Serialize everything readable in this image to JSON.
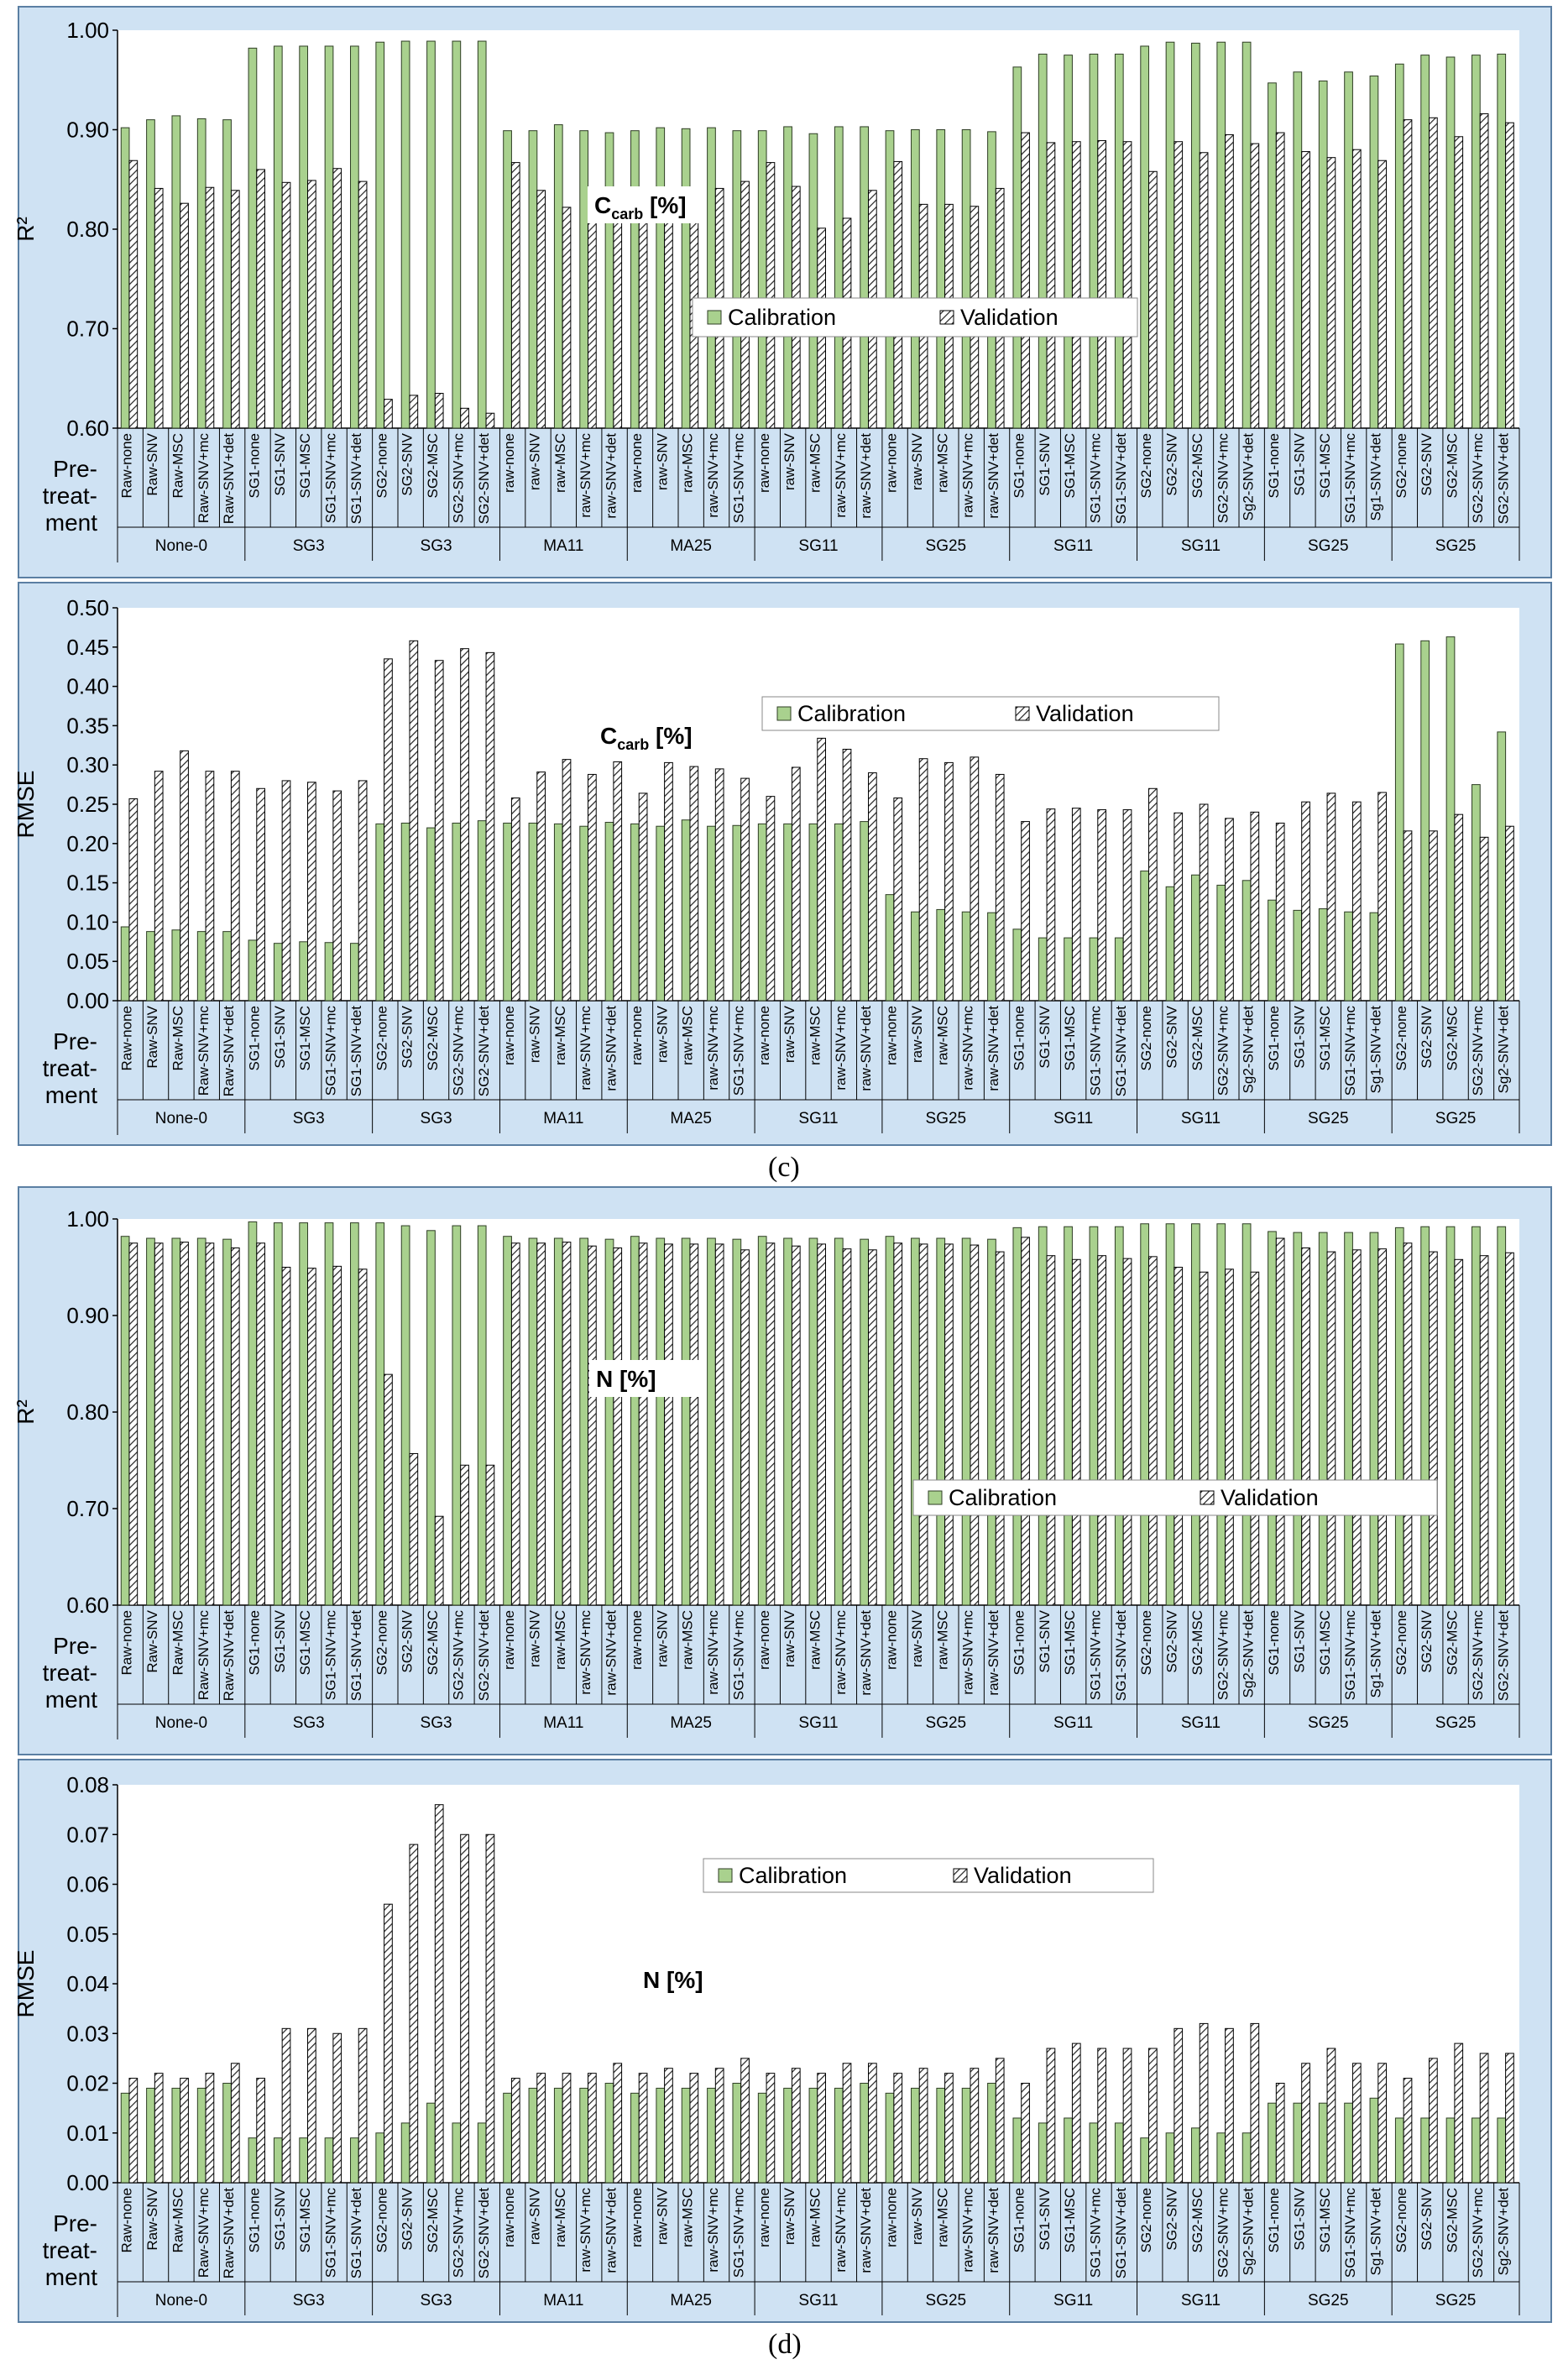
{
  "palette": {
    "calibration": "#a9d18e",
    "calibration_stroke": "#2e3d24",
    "validation": "#ffffff",
    "frame": "#cfe2f3",
    "panel_border": "#5b7fa3"
  },
  "pretreat_label": "Pre-\ntreat-\nment",
  "panel_letters": [
    "(c)",
    "(d)"
  ],
  "legend_labels": [
    "Calibration",
    "Validation"
  ],
  "labels_common": [
    "Raw-none",
    "Raw-SNV",
    "Raw-MSC",
    "Raw-SNV+mc",
    "Raw-SNV+det",
    "SG1-none",
    "SG1-SNV",
    "SG1-MSC",
    "SG1-SNV+mc",
    "SG1-SNV+det",
    "SG2-none",
    "SG2-SNV",
    "SG2-MSC",
    "SG2-SNV+mc",
    "SG2-SNV+det",
    "raw-none",
    "raw-SNV",
    "raw-MSC",
    "raw-SNV+mc",
    "raw-SNV+det",
    "raw-none",
    "raw-SNV",
    "raw-MSC",
    "raw-SNV+mc",
    "SG1-SNV+mc",
    "raw-none",
    "raw-SNV",
    "raw-MSC",
    "raw-SNV+mc",
    "raw-SNV+det",
    "raw-none",
    "raw-SNV",
    "raw-MSC",
    "raw-SNV+mc",
    "raw-SNV+det",
    "SG1-none",
    "SG1-SNV",
    "SG1-MSC",
    "SG1-SNV+mc",
    "SG1-SNV+det",
    "SG2-none",
    "SG2-SNV",
    "SG2-MSC",
    "SG2-SNV+mc",
    "Sg2-SNV+det",
    "SG1-none",
    "SG1-SNV",
    "SG1-MSC",
    "SG1-SNV+mc",
    "Sg1-SNV+det",
    "SG2-none",
    "SG2-SNV",
    "SG2-MSC",
    "SG2-SNV+mc",
    "SG2-SNV+det"
  ],
  "labels_rmse_c": [
    "Raw-none",
    "Raw-SNV",
    "Raw-MSC",
    "Raw-SNV+mc",
    "Raw-SNV+det",
    "SG1-none",
    "SG1-SNV",
    "SG1-MSC",
    "SG1-SNV+mc",
    "SG1-SNV+det",
    "SG2-none",
    "SG2-SNV",
    "SG2-MSC",
    "SG2-SNV+mc",
    "SG2-SNV+det",
    "raw-none",
    "raw-SNV",
    "raw-MSC",
    "raw-SNV+mc",
    "raw-SNV+det",
    "raw-none",
    "raw-SNV",
    "raw-MSC",
    "raw-SNV+mc",
    "SG1-SNV+mc",
    "raw-none",
    "raw-SNV",
    "raw-MSC",
    "raw-SNV+mc",
    "raw-SNV+det",
    "raw-none",
    "raw-SNV",
    "raw-MSC",
    "raw-SNV+mc",
    "raw-SNV+det",
    "SG1-none",
    "SG1-SNV",
    "SG1-MSC",
    "SG1-SNV+mc",
    "SG1-SNV+det",
    "SG2-none",
    "SG2-SNV",
    "SG2-MSC",
    "SG2-SNV+mc",
    "Sg2-SNV+det",
    "SG1-none",
    "SG1-SNV",
    "SG1-MSC",
    "SG1-SNV+mc",
    "Sg1-SNV+det",
    "SG2-none",
    "SG2-SNV",
    "SG2-MSC",
    "SG2-SNV+mc",
    "Sg2-SNV+det"
  ],
  "labels_rmse_n": [
    "Raw-none",
    "Raw-SNV",
    "Raw-MSC",
    "Raw-SNV+mc",
    "Raw-SNV+det",
    "SG1-none",
    "SG1-SNV",
    "SG1-MSC",
    "SG1-SNV+mc",
    "SG1-SNV+det",
    "SG2-none",
    "SG2-SNV",
    "SG2-MSC",
    "SG2-SNV+mc",
    "SG2-SNV+det",
    "raw-none",
    "raw-SNV",
    "raw-MSC",
    "raw-SNV+mc",
    "raw-SNV+det",
    "raw-none",
    "raw-SNV",
    "raw-MSC",
    "raw-SNV+mc",
    "SG1-SNV+mc",
    "raw-none",
    "raw-SNV",
    "raw-MSC",
    "raw-SNV+mc",
    "raw-SNV+det",
    "raw-none",
    "raw-SNV",
    "raw-MSC",
    "raw-SNV+mc",
    "raw-SNV+det",
    "SG1-none",
    "SG1-SNV",
    "SG1-MSC",
    "SG1-SNV+mc",
    "SG1-SNV+det",
    "SG2-none",
    "SG2-SNV",
    "SG2-MSC",
    "SG2-SNV+mc",
    "Sg2-SNV+det",
    "SG1-none",
    "SG1-SNV",
    "SG1-MSC",
    "SG1-SNV+mc",
    "Sg1-SNV+det",
    "SG2-none",
    "SG2-SNV",
    "SG2-MSC",
    "SG2-SNV+mc",
    "Sg2-SNV+det"
  ],
  "groups": [
    "None-0",
    "SG3",
    "SG3",
    "MA11",
    "MA25",
    "SG11",
    "SG25",
    "SG11",
    "SG11",
    "SG25",
    "SG25"
  ],
  "chart_data": [
    {
      "type": "bar",
      "title": "Ccarb [%]",
      "title_main": "C",
      "title_sub": "carb",
      "title_rest": " [%]",
      "ylabel": "R²",
      "ylim": [
        0.6,
        1.0
      ],
      "yticks": [
        "0.60",
        "0.70",
        "0.80",
        "0.90",
        "1.00"
      ],
      "legend": "mid-right",
      "series": [
        {
          "name": "Calibration",
          "values": [
            0.902,
            0.91,
            0.914,
            0.911,
            0.91,
            0.982,
            0.984,
            0.984,
            0.984,
            0.984,
            0.988,
            0.989,
            0.989,
            0.989,
            0.989,
            0.899,
            0.899,
            0.905,
            0.899,
            0.897,
            0.899,
            0.902,
            0.901,
            0.902,
            0.899,
            0.899,
            0.903,
            0.896,
            0.903,
            0.903,
            0.899,
            0.9,
            0.9,
            0.9,
            0.898,
            0.963,
            0.976,
            0.975,
            0.976,
            0.976,
            0.984,
            0.988,
            0.987,
            0.988,
            0.988,
            0.947,
            0.958,
            0.949,
            0.958,
            0.954,
            0.966,
            0.975,
            0.973,
            0.975,
            0.976
          ]
        },
        {
          "name": "Validation",
          "values": [
            0.869,
            0.841,
            0.826,
            0.842,
            0.839,
            0.86,
            0.847,
            0.849,
            0.861,
            0.848,
            0.629,
            0.633,
            0.635,
            0.62,
            0.615,
            0.867,
            0.839,
            0.822,
            0.84,
            0.826,
            0.84,
            0.829,
            0.832,
            0.841,
            0.848,
            0.867,
            0.843,
            0.801,
            0.811,
            0.839,
            0.868,
            0.825,
            0.825,
            0.823,
            0.841,
            0.897,
            0.887,
            0.888,
            0.889,
            0.888,
            0.858,
            0.888,
            0.877,
            0.895,
            0.886,
            0.897,
            0.878,
            0.872,
            0.88,
            0.869,
            0.91,
            0.912,
            0.893,
            0.916,
            0.907
          ]
        }
      ]
    },
    {
      "type": "bar",
      "title": "Ccarb [%]",
      "title_main": "C",
      "title_sub": "carb",
      "title_rest": " [%]",
      "ylabel": "RMSE",
      "ylim": [
        0,
        0.5
      ],
      "yticks": [
        "0.00",
        "0.05",
        "0.10",
        "0.15",
        "0.20",
        "0.25",
        "0.30",
        "0.35",
        "0.40",
        "0.45",
        "0.50"
      ],
      "legend": "top-center",
      "series": [
        {
          "name": "Calibration",
          "values": [
            0.094,
            0.088,
            0.09,
            0.088,
            0.088,
            0.077,
            0.073,
            0.075,
            0.074,
            0.073,
            0.225,
            0.226,
            0.22,
            0.226,
            0.229,
            0.226,
            0.226,
            0.225,
            0.222,
            0.227,
            0.225,
            0.222,
            0.23,
            0.222,
            0.223,
            0.225,
            0.225,
            0.225,
            0.225,
            0.228,
            0.135,
            0.113,
            0.116,
            0.113,
            0.112,
            0.091,
            0.08,
            0.08,
            0.08,
            0.08,
            0.165,
            0.145,
            0.16,
            0.147,
            0.153,
            0.128,
            0.115,
            0.117,
            0.113,
            0.112,
            0.454,
            0.458,
            0.463,
            0.275,
            0.342
          ]
        },
        {
          "name": "Validation",
          "values": [
            0.257,
            0.292,
            0.318,
            0.292,
            0.292,
            0.27,
            0.28,
            0.278,
            0.267,
            0.28,
            0.435,
            0.458,
            0.433,
            0.448,
            0.443,
            0.258,
            0.291,
            0.307,
            0.288,
            0.304,
            0.264,
            0.303,
            0.298,
            0.295,
            0.283,
            0.26,
            0.297,
            0.334,
            0.32,
            0.29,
            0.258,
            0.308,
            0.303,
            0.31,
            0.288,
            0.228,
            0.244,
            0.245,
            0.243,
            0.243,
            0.27,
            0.239,
            0.25,
            0.232,
            0.24,
            0.226,
            0.253,
            0.264,
            0.253,
            0.265,
            0.216,
            0.216,
            0.237,
            0.208,
            0.222
          ]
        }
      ]
    },
    {
      "type": "bar",
      "title": "N [%]",
      "title_main": "N",
      "title_sub": "",
      "title_rest": " [%]",
      "ylabel": "R²",
      "ylim": [
        0.6,
        1.0
      ],
      "yticks": [
        "0.60",
        "0.70",
        "0.80",
        "0.90",
        "1.00"
      ],
      "legend": "mid-right",
      "series": [
        {
          "name": "Calibration",
          "values": [
            0.982,
            0.98,
            0.98,
            0.98,
            0.979,
            0.997,
            0.996,
            0.996,
            0.996,
            0.996,
            0.996,
            0.993,
            0.988,
            0.993,
            0.993,
            0.982,
            0.98,
            0.98,
            0.98,
            0.979,
            0.982,
            0.98,
            0.98,
            0.98,
            0.979,
            0.982,
            0.98,
            0.98,
            0.98,
            0.979,
            0.982,
            0.98,
            0.98,
            0.98,
            0.979,
            0.991,
            0.992,
            0.992,
            0.992,
            0.992,
            0.995,
            0.995,
            0.995,
            0.995,
            0.995,
            0.987,
            0.986,
            0.986,
            0.986,
            0.986,
            0.991,
            0.992,
            0.992,
            0.992,
            0.992
          ]
        },
        {
          "name": "Validation",
          "values": [
            0.975,
            0.975,
            0.976,
            0.975,
            0.97,
            0.975,
            0.95,
            0.949,
            0.951,
            0.948,
            0.839,
            0.757,
            0.692,
            0.745,
            0.745,
            0.975,
            0.975,
            0.976,
            0.972,
            0.97,
            0.975,
            0.974,
            0.974,
            0.974,
            0.968,
            0.975,
            0.972,
            0.974,
            0.969,
            0.968,
            0.975,
            0.974,
            0.974,
            0.973,
            0.966,
            0.981,
            0.962,
            0.958,
            0.962,
            0.959,
            0.961,
            0.95,
            0.945,
            0.948,
            0.945,
            0.98,
            0.97,
            0.966,
            0.968,
            0.969,
            0.975,
            0.966,
            0.958,
            0.962,
            0.965
          ]
        }
      ]
    },
    {
      "type": "bar",
      "title": "N [%]",
      "title_main": "N",
      "title_sub": "",
      "title_rest": " [%]",
      "ylabel": "RMSE",
      "ylim": [
        0,
        0.08
      ],
      "yticks": [
        "0.00",
        "0.01",
        "0.02",
        "0.03",
        "0.04",
        "0.05",
        "0.06",
        "0.07",
        "0.08"
      ],
      "legend": "top-center",
      "series": [
        {
          "name": "Calibration",
          "values": [
            0.018,
            0.019,
            0.019,
            0.019,
            0.02,
            0.009,
            0.009,
            0.009,
            0.009,
            0.009,
            0.01,
            0.012,
            0.016,
            0.012,
            0.012,
            0.018,
            0.019,
            0.019,
            0.019,
            0.02,
            0.018,
            0.019,
            0.019,
            0.019,
            0.02,
            0.018,
            0.019,
            0.019,
            0.019,
            0.02,
            0.018,
            0.019,
            0.019,
            0.019,
            0.02,
            0.013,
            0.012,
            0.013,
            0.012,
            0.012,
            0.009,
            0.01,
            0.011,
            0.01,
            0.01,
            0.016,
            0.016,
            0.016,
            0.016,
            0.017,
            0.013,
            0.013,
            0.013,
            0.013,
            0.013
          ]
        },
        {
          "name": "Validation",
          "values": [
            0.021,
            0.022,
            0.021,
            0.022,
            0.024,
            0.021,
            0.031,
            0.031,
            0.03,
            0.031,
            0.056,
            0.068,
            0.076,
            0.07,
            0.07,
            0.021,
            0.022,
            0.022,
            0.022,
            0.024,
            0.022,
            0.023,
            0.022,
            0.023,
            0.025,
            0.022,
            0.023,
            0.022,
            0.024,
            0.024,
            0.022,
            0.023,
            0.022,
            0.023,
            0.025,
            0.02,
            0.027,
            0.028,
            0.027,
            0.027,
            0.027,
            0.031,
            0.032,
            0.031,
            0.032,
            0.02,
            0.024,
            0.027,
            0.024,
            0.024,
            0.021,
            0.025,
            0.028,
            0.026,
            0.026
          ]
        }
      ]
    }
  ]
}
